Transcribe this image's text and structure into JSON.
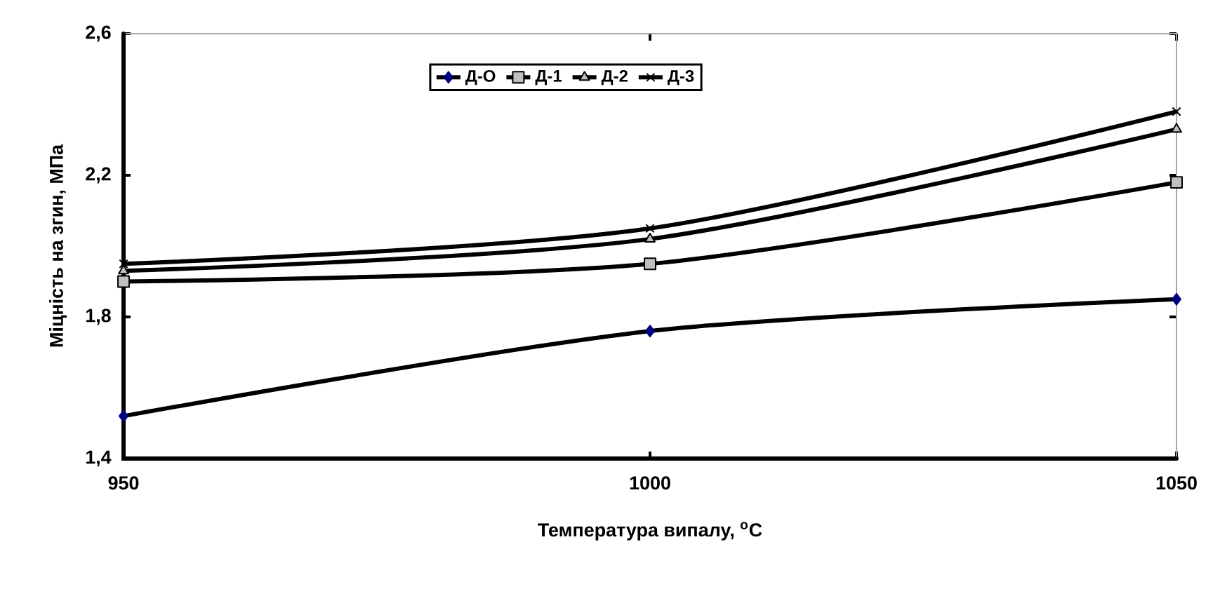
{
  "chart_data": {
    "type": "line",
    "xlabel": "Температура випалу, $^{o}$C",
    "ylabel": "Міцність на згин, МПа",
    "x": [
      950,
      1000,
      1050
    ],
    "xlim": [
      950,
      1050
    ],
    "xticks": [
      950,
      1000,
      1050
    ],
    "ylim": [
      1.4,
      2.6
    ],
    "yticks": [
      {
        "value": 1.4,
        "label": "1,4"
      },
      {
        "value": 1.8,
        "label": "1,8"
      },
      {
        "value": 2.2,
        "label": "2,2"
      },
      {
        "value": 2.6,
        "label": "2,6"
      }
    ],
    "grid": false,
    "legend": "top",
    "line_style": "solid",
    "series": [
      {
        "name": "Д-О",
        "color": "#000080",
        "marker": "diamond",
        "values": [
          1.52,
          1.76,
          1.85
        ]
      },
      {
        "name": "Д-1",
        "color": "#c0c0c0",
        "marker": "square",
        "values": [
          1.9,
          1.95,
          2.18
        ]
      },
      {
        "name": "Д-2",
        "color": "#c0c0c0",
        "marker": "triangle",
        "values": [
          1.93,
          2.02,
          2.33
        ]
      },
      {
        "name": "Д-3",
        "color": "#000000",
        "marker": "cross",
        "values": [
          1.95,
          2.05,
          2.38
        ]
      }
    ]
  }
}
